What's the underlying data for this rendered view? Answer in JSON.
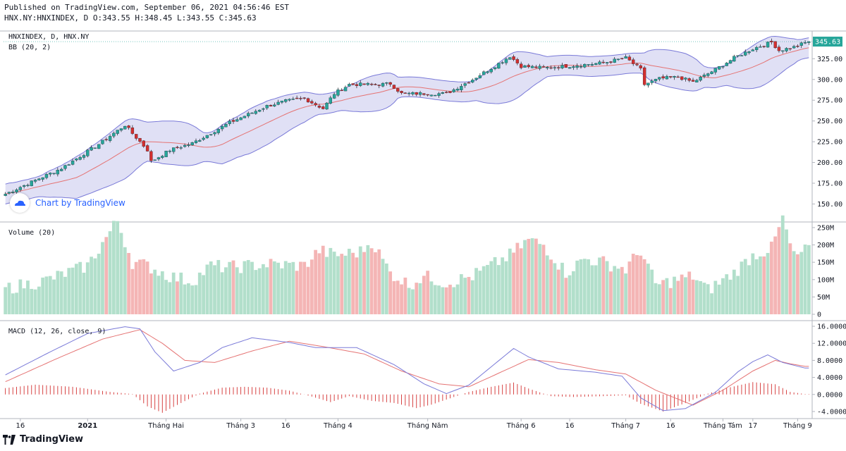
{
  "header": {
    "published": "Published on TradingView.com, September 06, 2021 04:56:46 EST",
    "ohlc": "HNX.NY:HNXINDEX, D O:343.55 H:348.45 L:343.55 C:345.63"
  },
  "footer": {
    "brand": "TradingView"
  },
  "watermark": "Chart by TradingView",
  "colors": {
    "up": "#26a69a",
    "down": "#d32f2f",
    "band_fill": "#d6d6f2",
    "band_line": "#7a7ad8",
    "basis": "#e57373",
    "vol_up": "#b2dfcb",
    "vol_down": "#f4b5b5",
    "macd": "#7a7ad8",
    "signal": "#e57373",
    "last_price_bg": "#26a69a"
  },
  "chart_data": [
    {
      "type": "candlestick",
      "title": "HNXINDEX, D, HNX.NY",
      "indicator_label": "BB (20, 2)",
      "last_price_label": "345.63",
      "ylim": [
        130,
        355
      ],
      "yticks": [
        "325.00",
        "300.00",
        "275.00",
        "250.00",
        "225.00",
        "200.00",
        "175.00",
        "150.00"
      ],
      "xticks": [
        "16",
        "2021",
        "Tháng Hai",
        "Tháng 3",
        "16",
        "Tháng 4",
        "Tháng Năm",
        "Tháng 6",
        "16",
        "Tháng 7",
        "16",
        "Tháng Tám",
        "17",
        "Tháng 9"
      ],
      "anchors": [
        [
          0,
          162
        ],
        [
          15,
          193
        ],
        [
          25,
          222
        ],
        [
          32,
          245
        ],
        [
          38,
          215
        ],
        [
          39,
          201
        ],
        [
          44,
          215
        ],
        [
          50,
          223
        ],
        [
          60,
          248
        ],
        [
          70,
          268
        ],
        [
          75,
          274
        ],
        [
          80,
          277
        ],
        [
          85,
          265
        ],
        [
          88,
          283
        ],
        [
          92,
          294
        ],
        [
          100,
          294
        ],
        [
          103,
          295
        ],
        [
          106,
          283
        ],
        [
          110,
          283
        ],
        [
          115,
          283
        ],
        [
          118,
          283
        ],
        [
          125,
          300
        ],
        [
          133,
          322
        ],
        [
          135,
          328
        ],
        [
          138,
          316
        ],
        [
          144,
          314
        ],
        [
          150,
          316
        ],
        [
          160,
          320
        ],
        [
          166,
          326
        ],
        [
          170,
          312
        ],
        [
          171,
          294
        ],
        [
          175,
          301
        ],
        [
          180,
          303
        ],
        [
          184,
          297
        ],
        [
          190,
          312
        ],
        [
          195,
          326
        ],
        [
          200,
          337
        ],
        [
          205,
          345
        ],
        [
          207,
          335
        ],
        [
          211,
          339
        ],
        [
          215,
          346
        ]
      ]
    },
    {
      "type": "bar",
      "title": "Volume (20)",
      "ylim": [
        0,
        260
      ],
      "yticks": [
        "250M",
        "200M",
        "150M",
        "100M",
        "50M",
        "0"
      ],
      "anchors": [
        [
          0,
          75
        ],
        [
          10,
          95
        ],
        [
          22,
          140
        ],
        [
          30,
          270
        ],
        [
          34,
          150
        ],
        [
          38,
          140
        ],
        [
          44,
          110
        ],
        [
          50,
          95
        ],
        [
          55,
          140
        ],
        [
          60,
          135
        ],
        [
          70,
          145
        ],
        [
          80,
          140
        ],
        [
          84,
          185
        ],
        [
          88,
          170
        ],
        [
          95,
          180
        ],
        [
          98,
          210
        ],
        [
          103,
          120
        ],
        [
          108,
          85
        ],
        [
          112,
          110
        ],
        [
          118,
          90
        ],
        [
          125,
          110
        ],
        [
          130,
          140
        ],
        [
          135,
          170
        ],
        [
          140,
          215
        ],
        [
          144,
          200
        ],
        [
          150,
          120
        ],
        [
          155,
          160
        ],
        [
          160,
          150
        ],
        [
          166,
          130
        ],
        [
          170,
          185
        ],
        [
          174,
          85
        ],
        [
          178,
          95
        ],
        [
          184,
          110
        ],
        [
          188,
          70
        ],
        [
          195,
          120
        ],
        [
          200,
          170
        ],
        [
          205,
          190
        ],
        [
          208,
          275
        ],
        [
          211,
          165
        ],
        [
          215,
          190
        ]
      ]
    },
    {
      "type": "line",
      "title": "MACD (12, 26, close, 9)",
      "ylim": [
        -5,
        16.5
      ],
      "yticks": [
        "16.0000",
        "12.0000",
        "8.0000",
        "4.0000",
        "0.0000",
        "-4.0000"
      ],
      "series": [
        {
          "name": "MACD",
          "anchors": [
            [
              0,
              4.6
            ],
            [
              12,
              10
            ],
            [
              22,
              14.3
            ],
            [
              32,
              15.9
            ],
            [
              36,
              15.4
            ],
            [
              40,
              10
            ],
            [
              45,
              5.5
            ],
            [
              52,
              7.5
            ],
            [
              58,
              11
            ],
            [
              66,
              13.3
            ],
            [
              76,
              12.2
            ],
            [
              83,
              11.0
            ],
            [
              94,
              11.0
            ],
            [
              104,
              7
            ],
            [
              112,
              2.5
            ],
            [
              118,
              0.2
            ],
            [
              124,
              2.2
            ],
            [
              130,
              6.5
            ],
            [
              136,
              10.8
            ],
            [
              140,
              8.8
            ],
            [
              148,
              6
            ],
            [
              158,
              5.2
            ],
            [
              165,
              4.3
            ],
            [
              170,
              -0.8
            ],
            [
              176,
              -3.8
            ],
            [
              182,
              -3.3
            ],
            [
              190,
              0.5
            ],
            [
              196,
              5.3
            ],
            [
              200,
              7.7
            ],
            [
              204,
              9.3
            ],
            [
              208,
              7.5
            ],
            [
              214,
              6.2
            ]
          ]
        },
        {
          "name": "Signal",
          "anchors": [
            [
              0,
              3.0
            ],
            [
              14,
              8.5
            ],
            [
              26,
              13
            ],
            [
              36,
              15.2
            ],
            [
              42,
              12
            ],
            [
              48,
              8
            ],
            [
              56,
              7.5
            ],
            [
              66,
              10.2
            ],
            [
              76,
              12.5
            ],
            [
              86,
              11.1
            ],
            [
              96,
              9.5
            ],
            [
              106,
              5.5
            ],
            [
              116,
              2.5
            ],
            [
              124,
              1.8
            ],
            [
              132,
              5
            ],
            [
              140,
              8.2
            ],
            [
              148,
              7.5
            ],
            [
              158,
              5.8
            ],
            [
              166,
              4.8
            ],
            [
              174,
              1
            ],
            [
              184,
              -2.5
            ],
            [
              192,
              1
            ],
            [
              200,
              5.5
            ],
            [
              206,
              8
            ],
            [
              210,
              7.2
            ],
            [
              214,
              6.6
            ]
          ]
        },
        {
          "name": "Histogram",
          "anchors": [
            [
              0,
              1.5
            ],
            [
              8,
              2.3
            ],
            [
              18,
              1.8
            ],
            [
              28,
              0.6
            ],
            [
              34,
              0.1
            ],
            [
              38,
              -2.8
            ],
            [
              42,
              -4.3
            ],
            [
              47,
              -2.0
            ],
            [
              52,
              0.2
            ],
            [
              58,
              1.6
            ],
            [
              64,
              1.8
            ],
            [
              70,
              1.6
            ],
            [
              76,
              0.9
            ],
            [
              82,
              -0.5
            ],
            [
              87,
              -1.8
            ],
            [
              92,
              -0.4
            ],
            [
              98,
              -1.5
            ],
            [
              104,
              -2.0
            ],
            [
              110,
              -3.2
            ],
            [
              114,
              -2.4
            ],
            [
              118,
              -1.2
            ],
            [
              124,
              0.6
            ],
            [
              130,
              1.8
            ],
            [
              136,
              2.8
            ],
            [
              140,
              1.4
            ],
            [
              146,
              -0.4
            ],
            [
              152,
              -0.6
            ],
            [
              160,
              -0.4
            ],
            [
              166,
              -0.2
            ],
            [
              170,
              -2.2
            ],
            [
              176,
              -4.0
            ],
            [
              182,
              -2.0
            ],
            [
              188,
              0.2
            ],
            [
              194,
              1.7
            ],
            [
              200,
              2.9
            ],
            [
              206,
              2.4
            ],
            [
              210,
              0.6
            ],
            [
              214,
              0.1
            ]
          ]
        }
      ]
    }
  ]
}
